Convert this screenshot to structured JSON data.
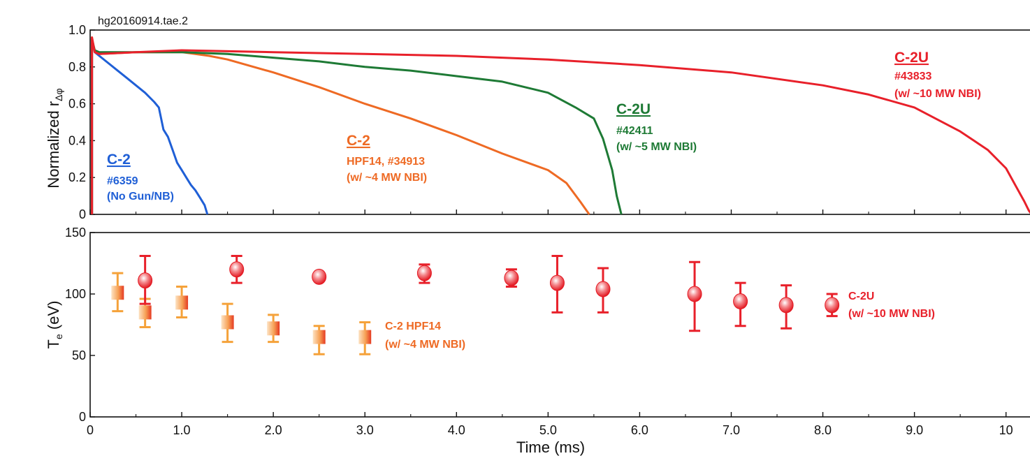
{
  "figure_tag": "hg20160914.tae.2",
  "xlabel": "Time (ms)",
  "x_ticks": [
    "0",
    "1.0",
    "2.0",
    "3.0",
    "4.0",
    "5.0",
    "6.0",
    "7.0",
    "8.0",
    "9.0",
    "10"
  ],
  "colors": {
    "blue": "#1f5fd6",
    "orange": "#ee6a24",
    "green": "#1e7a35",
    "red": "#e8202a",
    "light_orange": "#f5a23a"
  },
  "chart_data": [
    {
      "type": "line",
      "panel": "top",
      "ylabel_main": "Normalized r",
      "ylabel_sub": "Δφ",
      "xlim": [
        0,
        10.3
      ],
      "ylim": [
        0,
        1.0
      ],
      "y_ticks": [
        "1.0",
        "0.8",
        "0.6",
        "0.4",
        "0.2",
        "0"
      ],
      "series": [
        {
          "color": "#1f5fd6",
          "x": [
            0.02,
            0.05,
            0.1,
            0.2,
            0.3,
            0.4,
            0.5,
            0.6,
            0.7,
            0.75,
            0.8,
            0.85,
            0.9,
            0.95,
            1.0,
            1.05,
            1.1,
            1.15,
            1.2,
            1.25,
            1.28
          ],
          "y": [
            0.95,
            0.88,
            0.86,
            0.82,
            0.78,
            0.74,
            0.7,
            0.66,
            0.61,
            0.58,
            0.46,
            0.42,
            0.35,
            0.28,
            0.24,
            0.2,
            0.16,
            0.13,
            0.09,
            0.05,
            0.0
          ]
        },
        {
          "color": "#ee6a24",
          "x": [
            0.02,
            0.05,
            0.1,
            0.5,
            1.0,
            1.3,
            1.5,
            2.0,
            2.5,
            3.0,
            3.5,
            4.0,
            4.5,
            5.0,
            5.2,
            5.35,
            5.45
          ],
          "y": [
            0.96,
            0.88,
            0.87,
            0.88,
            0.88,
            0.86,
            0.84,
            0.77,
            0.69,
            0.6,
            0.52,
            0.43,
            0.33,
            0.24,
            0.17,
            0.07,
            0.0
          ]
        },
        {
          "color": "#1e7a35",
          "x": [
            0.02,
            0.05,
            0.1,
            0.5,
            1.0,
            1.5,
            2.0,
            2.5,
            3.0,
            3.5,
            4.0,
            4.5,
            5.0,
            5.3,
            5.5,
            5.6,
            5.7,
            5.75,
            5.8
          ],
          "y": [
            0.95,
            0.89,
            0.88,
            0.88,
            0.88,
            0.87,
            0.85,
            0.83,
            0.8,
            0.78,
            0.75,
            0.72,
            0.66,
            0.58,
            0.52,
            0.41,
            0.24,
            0.1,
            0.0
          ]
        },
        {
          "color": "#e8202a",
          "x": [
            0.02,
            0.05,
            0.1,
            0.5,
            1.0,
            2.0,
            3.0,
            4.0,
            5.0,
            6.0,
            7.0,
            8.0,
            8.5,
            9.0,
            9.5,
            9.8,
            10.0,
            10.1,
            10.2,
            10.25,
            10.28
          ],
          "y": [
            0.96,
            0.88,
            0.87,
            0.88,
            0.89,
            0.88,
            0.87,
            0.86,
            0.84,
            0.81,
            0.77,
            0.7,
            0.65,
            0.58,
            0.45,
            0.35,
            0.25,
            0.16,
            0.07,
            0.02,
            0.0
          ]
        }
      ],
      "annotations": [
        {
          "color": "#1f5fd6",
          "title": "C-2",
          "lines": [
            "#6359",
            "(No Gun/NB)"
          ]
        },
        {
          "color": "#ee6a24",
          "title": "C-2",
          "lines": [
            "HPF14, #34913",
            "(w/ ~4 MW NBI)"
          ]
        },
        {
          "color": "#1e7a35",
          "title": "C-2U",
          "lines": [
            "#42411",
            "(w/ ~5 MW NBI)"
          ]
        },
        {
          "color": "#e8202a",
          "title": "C-2U",
          "lines": [
            "#43833",
            "(w/ ~10 MW NBI)"
          ]
        }
      ]
    },
    {
      "type": "scatter",
      "panel": "bottom",
      "ylabel_main": "T",
      "ylabel_sub": "e",
      "ylabel_unit": " (eV)",
      "xlim": [
        0,
        10.3
      ],
      "ylim": [
        0,
        150
      ],
      "y_ticks": [
        "150",
        "100",
        "50",
        "0"
      ],
      "series": [
        {
          "color": "#f5a23a",
          "marker": "square",
          "x": [
            0.3,
            0.6,
            1.0,
            1.5,
            2.0,
            2.5,
            3.0
          ],
          "y": [
            101,
            85,
            93,
            77,
            72,
            65,
            65
          ],
          "err_lo": [
            86,
            73,
            81,
            61,
            61,
            51,
            51
          ],
          "err_hi": [
            117,
            96,
            106,
            92,
            83,
            74,
            77
          ]
        },
        {
          "color": "#e8202a",
          "marker": "circle",
          "x": [
            0.6,
            1.6,
            2.5,
            3.65,
            4.6,
            5.1,
            5.6,
            6.6,
            7.1,
            7.6,
            8.1
          ],
          "y": [
            111,
            120,
            114,
            117,
            113,
            109,
            104,
            100,
            94,
            91,
            91
          ],
          "err_lo": [
            92,
            109,
            null,
            109,
            106,
            85,
            85,
            70,
            74,
            72,
            82
          ],
          "err_hi": [
            131,
            131,
            null,
            124,
            120,
            131,
            121,
            126,
            109,
            107,
            100
          ]
        }
      ],
      "annotations": [
        {
          "color": "#ee6a24",
          "lines": [
            "C-2 HPF14",
            "(w/ ~4 MW NBI)"
          ]
        },
        {
          "color": "#e8202a",
          "lines": [
            "C-2U",
            "(w/ ~10 MW NBI)"
          ]
        }
      ]
    }
  ]
}
